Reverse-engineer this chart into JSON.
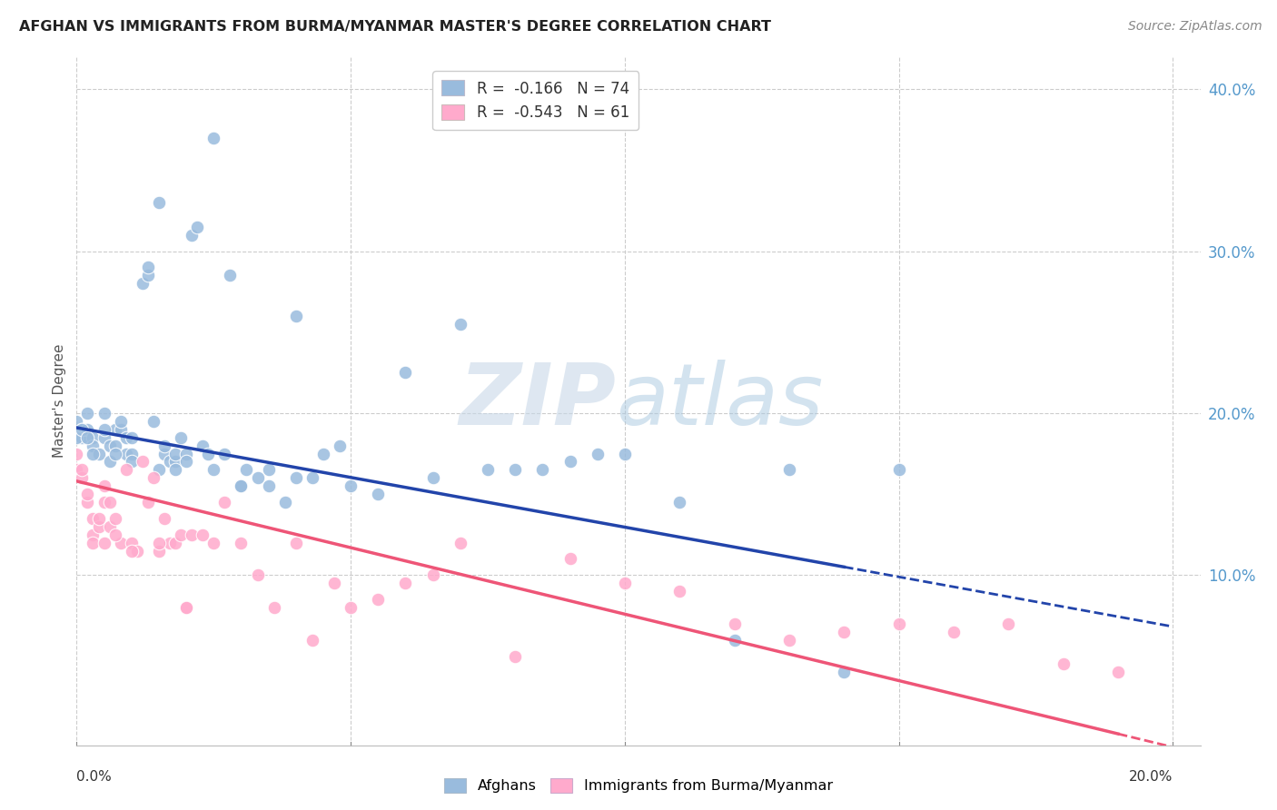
{
  "title": "AFGHAN VS IMMIGRANTS FROM BURMA/MYANMAR MASTER'S DEGREE CORRELATION CHART",
  "source": "Source: ZipAtlas.com",
  "ylabel": "Master's Degree",
  "color_afghan": "#99BBDD",
  "color_burma": "#FFAACC",
  "color_line_afghan": "#2244AA",
  "color_line_burma": "#EE5577",
  "watermark_zip": "ZIP",
  "watermark_atlas": "atlas",
  "xlim": [
    0.0,
    0.205
  ],
  "ylim": [
    -0.005,
    0.42
  ],
  "afghans_x": [
    0.0,
    0.001,
    0.001,
    0.002,
    0.002,
    0.003,
    0.003,
    0.004,
    0.005,
    0.005,
    0.006,
    0.006,
    0.007,
    0.007,
    0.008,
    0.008,
    0.009,
    0.009,
    0.01,
    0.01,
    0.012,
    0.013,
    0.013,
    0.014,
    0.015,
    0.016,
    0.016,
    0.017,
    0.018,
    0.018,
    0.019,
    0.02,
    0.021,
    0.022,
    0.023,
    0.024,
    0.025,
    0.027,
    0.028,
    0.03,
    0.031,
    0.033,
    0.035,
    0.038,
    0.04,
    0.043,
    0.045,
    0.048,
    0.05,
    0.055,
    0.06,
    0.065,
    0.07,
    0.075,
    0.08,
    0.085,
    0.09,
    0.095,
    0.1,
    0.11,
    0.12,
    0.13,
    0.14,
    0.15,
    0.0,
    0.001,
    0.002,
    0.003,
    0.005,
    0.007,
    0.01,
    0.015,
    0.018,
    0.02,
    0.025,
    0.03,
    0.035,
    0.04
  ],
  "afghans_y": [
    0.195,
    0.19,
    0.185,
    0.2,
    0.19,
    0.185,
    0.18,
    0.175,
    0.185,
    0.2,
    0.17,
    0.18,
    0.18,
    0.19,
    0.19,
    0.195,
    0.185,
    0.175,
    0.175,
    0.185,
    0.28,
    0.285,
    0.29,
    0.195,
    0.33,
    0.175,
    0.18,
    0.17,
    0.17,
    0.175,
    0.185,
    0.175,
    0.31,
    0.315,
    0.18,
    0.175,
    0.37,
    0.175,
    0.285,
    0.155,
    0.165,
    0.16,
    0.165,
    0.145,
    0.26,
    0.16,
    0.175,
    0.18,
    0.155,
    0.15,
    0.225,
    0.16,
    0.255,
    0.165,
    0.165,
    0.165,
    0.17,
    0.175,
    0.175,
    0.145,
    0.06,
    0.165,
    0.04,
    0.165,
    0.185,
    0.19,
    0.185,
    0.175,
    0.19,
    0.175,
    0.17,
    0.165,
    0.165,
    0.17,
    0.165,
    0.155,
    0.155,
    0.16
  ],
  "burma_x": [
    0.0,
    0.0,
    0.001,
    0.001,
    0.002,
    0.002,
    0.003,
    0.003,
    0.004,
    0.004,
    0.005,
    0.005,
    0.006,
    0.006,
    0.007,
    0.008,
    0.009,
    0.01,
    0.011,
    0.012,
    0.013,
    0.014,
    0.015,
    0.016,
    0.017,
    0.018,
    0.019,
    0.02,
    0.021,
    0.023,
    0.025,
    0.027,
    0.03,
    0.033,
    0.036,
    0.04,
    0.043,
    0.047,
    0.05,
    0.055,
    0.06,
    0.065,
    0.07,
    0.08,
    0.09,
    0.1,
    0.11,
    0.12,
    0.13,
    0.14,
    0.15,
    0.16,
    0.17,
    0.18,
    0.19,
    0.003,
    0.005,
    0.007,
    0.01,
    0.015,
    0.02
  ],
  "burma_y": [
    0.165,
    0.175,
    0.16,
    0.165,
    0.145,
    0.15,
    0.135,
    0.125,
    0.13,
    0.135,
    0.155,
    0.145,
    0.13,
    0.145,
    0.135,
    0.12,
    0.165,
    0.12,
    0.115,
    0.17,
    0.145,
    0.16,
    0.115,
    0.135,
    0.12,
    0.12,
    0.125,
    0.08,
    0.125,
    0.125,
    0.12,
    0.145,
    0.12,
    0.1,
    0.08,
    0.12,
    0.06,
    0.095,
    0.08,
    0.085,
    0.095,
    0.1,
    0.12,
    0.05,
    0.11,
    0.095,
    0.09,
    0.07,
    0.06,
    0.065,
    0.07,
    0.065,
    0.07,
    0.045,
    0.04,
    0.12,
    0.12,
    0.125,
    0.115,
    0.12,
    0.08
  ]
}
